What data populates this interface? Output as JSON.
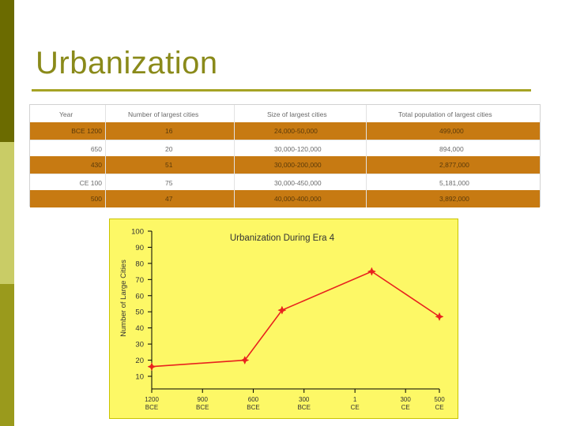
{
  "slide": {
    "title": "Urbanization"
  },
  "table": {
    "headers": [
      "Year",
      "Number of largest cities",
      "Size of largest cities",
      "Total population of largest cities"
    ],
    "rows": [
      [
        "BCE 1200",
        "16",
        "24,000-50,000",
        "499,000"
      ],
      [
        "650",
        "20",
        "30,000-120,000",
        "894,000"
      ],
      [
        "430",
        "51",
        "30,000-200,000",
        "2,877,000"
      ],
      [
        "CE 100",
        "75",
        "30,000-450,000",
        "5,181,000"
      ],
      [
        "500",
        "47",
        "40,000-400,000",
        "3,892,000"
      ]
    ]
  },
  "chart_data": {
    "type": "line",
    "title": "Urbanization During Era 4",
    "xlabel": "",
    "ylabel": "Number of Large Cities",
    "x_ticks": [
      "1200 BCE",
      "900 BCE",
      "600 BCE",
      "300 BCE",
      "1 CE",
      "300 CE",
      "500 CE"
    ],
    "x_tick_values": [
      -1200,
      -900,
      -600,
      -300,
      1,
      300,
      500
    ],
    "y_ticks": [
      "10",
      "20",
      "30",
      "40",
      "50",
      "60",
      "70",
      "80",
      "90",
      "100"
    ],
    "ylim": [
      10,
      100
    ],
    "xlim": [
      -1200,
      500
    ],
    "series": [
      {
        "x": [
          -1200,
          -650,
          -430,
          100,
          500
        ],
        "values": [
          16,
          20,
          51,
          75,
          47
        ],
        "color": "#e8221e"
      }
    ],
    "background": "#fdf866",
    "grid": false
  }
}
